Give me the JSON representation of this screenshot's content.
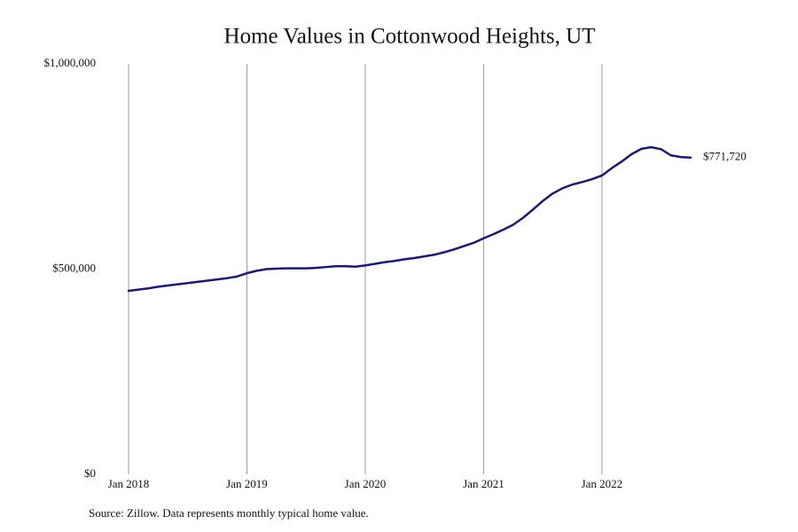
{
  "chart_data": {
    "type": "line",
    "title": "Home Values in Cottonwood Heights, UT",
    "source": "Source: Zillow. Data represents monthly typical home value.",
    "x": [
      "2018-01",
      "2018-02",
      "2018-03",
      "2018-04",
      "2018-05",
      "2018-06",
      "2018-07",
      "2018-08",
      "2018-09",
      "2018-10",
      "2018-11",
      "2018-12",
      "2019-01",
      "2019-02",
      "2019-03",
      "2019-04",
      "2019-05",
      "2019-06",
      "2019-07",
      "2019-08",
      "2019-09",
      "2019-10",
      "2019-11",
      "2019-12",
      "2020-01",
      "2020-02",
      "2020-03",
      "2020-04",
      "2020-05",
      "2020-06",
      "2020-07",
      "2020-08",
      "2020-09",
      "2020-10",
      "2020-11",
      "2020-12",
      "2021-01",
      "2021-02",
      "2021-03",
      "2021-04",
      "2021-05",
      "2021-06",
      "2021-07",
      "2021-08",
      "2021-09",
      "2021-10",
      "2021-11",
      "2021-12",
      "2022-01",
      "2022-02",
      "2022-03",
      "2022-04",
      "2022-05",
      "2022-06",
      "2022-07",
      "2022-08",
      "2022-09",
      "2022-10"
    ],
    "values": [
      447000,
      450000,
      453000,
      457000,
      460000,
      463000,
      466000,
      469000,
      472000,
      475000,
      478000,
      482000,
      490000,
      496000,
      500000,
      501000,
      502000,
      502000,
      502000,
      503000,
      505000,
      507000,
      507000,
      506000,
      509000,
      513000,
      517000,
      520000,
      524000,
      527000,
      531000,
      535000,
      541000,
      548000,
      556000,
      564000,
      575000,
      585000,
      596000,
      608000,
      625000,
      645000,
      666000,
      684000,
      697000,
      706000,
      712000,
      719000,
      728000,
      746000,
      762000,
      780000,
      793000,
      797000,
      792000,
      777000,
      773000,
      771720
    ],
    "value_labels": [
      null,
      null,
      null,
      null,
      null,
      null,
      null,
      null,
      null,
      null,
      null,
      null,
      null,
      null,
      null,
      null,
      null,
      null,
      null,
      null,
      null,
      null,
      null,
      null,
      null,
      null,
      null,
      null,
      null,
      null,
      null,
      null,
      null,
      null,
      null,
      null,
      null,
      null,
      null,
      null,
      null,
      null,
      null,
      null,
      null,
      null,
      null,
      null,
      null,
      null,
      null,
      null,
      null,
      null,
      null,
      null,
      null,
      "$771,720"
    ],
    "color": "#1b1a6b",
    "xlim": [
      "2018-01",
      "2022-10"
    ],
    "xticks": [
      {
        "value": "2018-01",
        "label": "Jan 2018"
      },
      {
        "value": "2019-01",
        "label": "Jan 2019"
      },
      {
        "value": "2020-01",
        "label": "Jan 2020"
      },
      {
        "value": "2021-01",
        "label": "Jan 2021"
      },
      {
        "value": "2022-01",
        "label": "Jan 2022"
      }
    ],
    "ylim": [
      0,
      1000000
    ],
    "yticks": [
      {
        "value": 0,
        "label": "$0"
      },
      {
        "value": 500000,
        "label": "$500,000"
      },
      {
        "value": 1000000,
        "label": "$1,000,000"
      }
    ],
    "grid": "x"
  }
}
